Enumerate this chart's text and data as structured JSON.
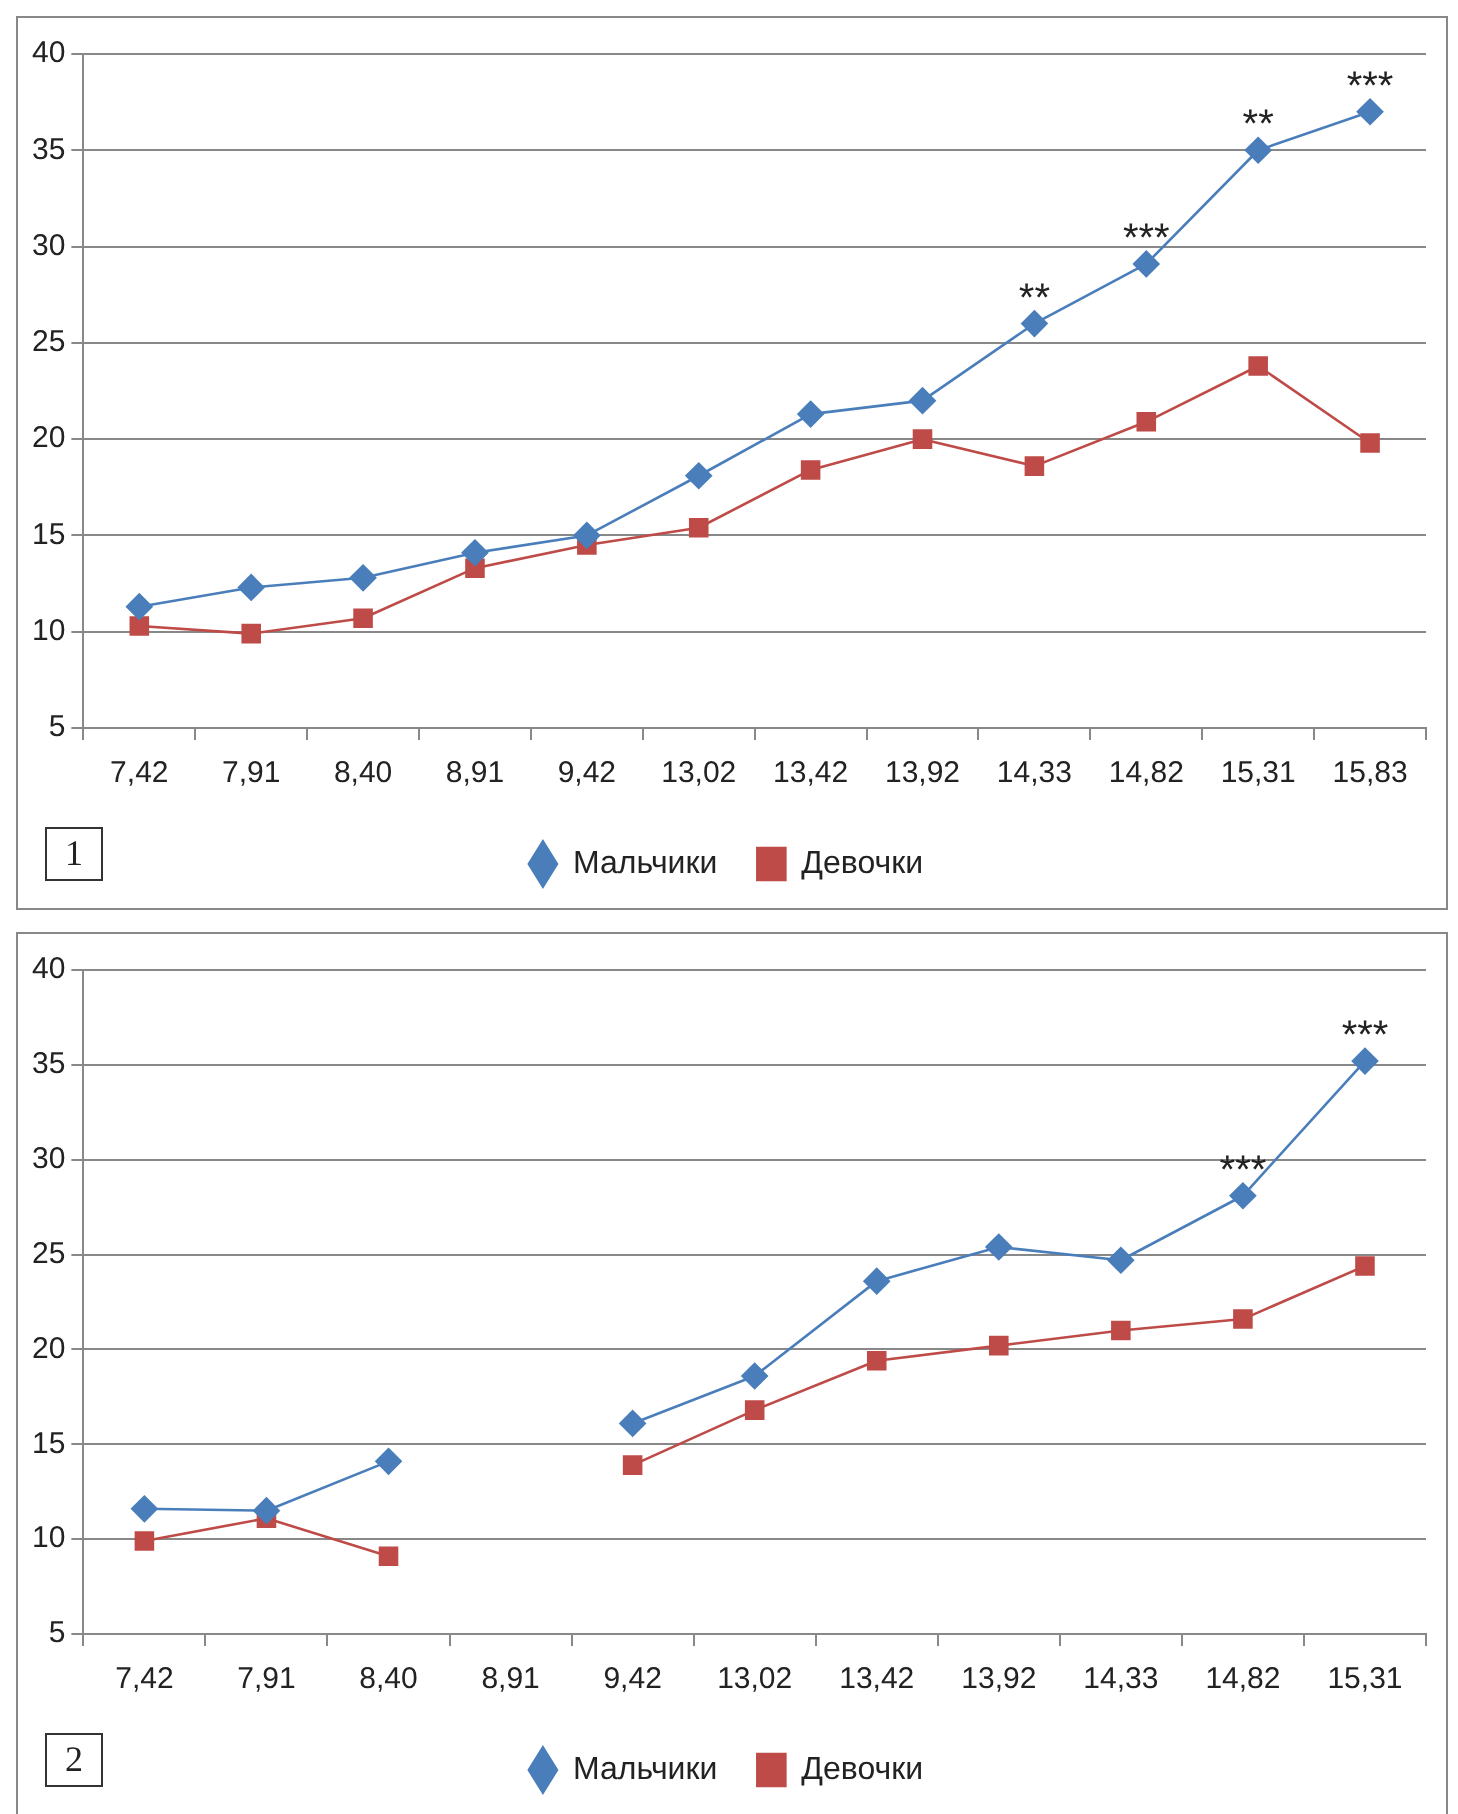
{
  "chart_data": [
    {
      "type": "line",
      "categories": [
        "7,42",
        "7,91",
        "8,40",
        "8,91",
        "9,42",
        "13,02",
        "13,42",
        "13,92",
        "14,33",
        "14,82",
        "15,31",
        "15,83"
      ],
      "series": [
        {
          "name": "Мальчики",
          "color": "#4a7ebb",
          "marker": "diamond",
          "values": [
            11.3,
            12.3,
            12.8,
            14.1,
            15.0,
            18.1,
            21.3,
            22.0,
            26.0,
            29.1,
            35.0,
            37.0
          ]
        },
        {
          "name": "Девочки",
          "color": "#be4b48",
          "marker": "square",
          "values": [
            10.3,
            9.9,
            10.7,
            13.3,
            14.5,
            15.4,
            18.4,
            20.0,
            18.6,
            20.9,
            23.8,
            19.8
          ]
        }
      ],
      "ylim": [
        5,
        40
      ],
      "yticks": [
        5,
        10,
        15,
        20,
        25,
        30,
        35,
        40
      ],
      "grid": "y",
      "legend": "bottom",
      "annotations": [
        {
          "text": "**",
          "x": "14,33",
          "y": 26.0
        },
        {
          "text": "***",
          "x": "14,82",
          "y": 29.1
        },
        {
          "text": "**",
          "x": "15,31",
          "y": 35.0
        },
        {
          "text": "***",
          "x": "15,83",
          "y": 37.0
        },
        "1"
      ]
    },
    {
      "type": "line",
      "categories": [
        "7,42",
        "7,91",
        "8,40",
        "8,91",
        "9,42",
        "13,02",
        "13,42",
        "13,92",
        "14,33",
        "14,82",
        "15,31"
      ],
      "series": [
        {
          "name": "Мальчики",
          "color": "#4a7ebb",
          "marker": "diamond",
          "values": [
            11.6,
            11.5,
            14.1,
            null,
            16.1,
            18.6,
            23.6,
            25.4,
            24.7,
            28.1,
            35.2
          ]
        },
        {
          "name": "Девочки",
          "color": "#be4b48",
          "marker": "square",
          "values": [
            9.9,
            11.1,
            9.1,
            null,
            13.9,
            16.8,
            19.4,
            20.2,
            21.0,
            21.6,
            24.4
          ]
        }
      ],
      "ylim": [
        5,
        40
      ],
      "yticks": [
        5,
        10,
        15,
        20,
        25,
        30,
        35,
        40
      ],
      "grid": "y",
      "legend": "bottom",
      "annotations": [
        {
          "text": "***",
          "x": "14,82",
          "y": 28.1
        },
        {
          "text": "***",
          "x": "15,31",
          "y": 35.2
        },
        "2"
      ]
    }
  ]
}
